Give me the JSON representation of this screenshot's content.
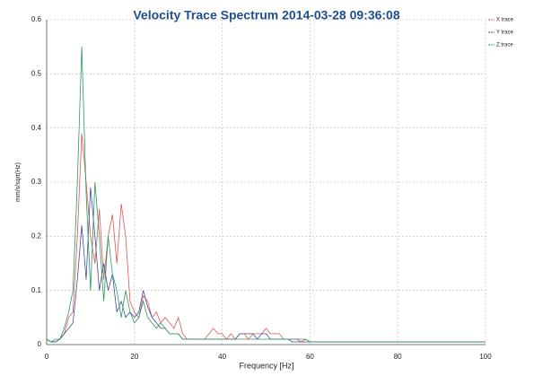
{
  "chart_data": {
    "type": "line",
    "title": "Velocity Trace Spectrum 2014-03-28 09:36:08",
    "x_label": "Frequency [Hz]",
    "y_label": "mm/s/sqrt(Hz)",
    "x": [
      0,
      1,
      2,
      3,
      4,
      5,
      6,
      7,
      8,
      9,
      10,
      11,
      12,
      13,
      14,
      15,
      16,
      17,
      18,
      19,
      20,
      21,
      22,
      23,
      24,
      25,
      26,
      27,
      28,
      29,
      30,
      31,
      32,
      33,
      34,
      35,
      36,
      37,
      38,
      39,
      40,
      41,
      42,
      43,
      44,
      45,
      46,
      47,
      48,
      49,
      50,
      51,
      52,
      53,
      54,
      55,
      56,
      57,
      58,
      59,
      60,
      61,
      62,
      63,
      64,
      65,
      66,
      67,
      68,
      69,
      70,
      71,
      72,
      73,
      74,
      75,
      76,
      77,
      78,
      79,
      80,
      81,
      82,
      83,
      84,
      85,
      86,
      87,
      88,
      89,
      90,
      91,
      92,
      93,
      94,
      95,
      96,
      97,
      98,
      99,
      100
    ],
    "series": [
      {
        "name": "X trace",
        "color": "#e05555",
        "values": [
          0.01,
          0.005,
          0.005,
          0.01,
          0.02,
          0.05,
          0.06,
          0.2,
          0.39,
          0.3,
          0.2,
          0.15,
          0.25,
          0.12,
          0.2,
          0.24,
          0.15,
          0.26,
          0.2,
          0.08,
          0.06,
          0.05,
          0.09,
          0.08,
          0.05,
          0.06,
          0.04,
          0.05,
          0.04,
          0.03,
          0.05,
          0.02,
          0.01,
          0.01,
          0.01,
          0.01,
          0.01,
          0.02,
          0.03,
          0.02,
          0.02,
          0.01,
          0.02,
          0.01,
          0.02,
          0.02,
          0.01,
          0.02,
          0.02,
          0.02,
          0.03,
          0.02,
          0.02,
          0.02,
          0.01,
          0.01,
          0.01,
          0.01,
          0.005,
          0.01,
          0.005,
          0.005,
          0.005,
          0.005,
          0.005,
          0.005,
          0.005,
          0.005,
          0.005,
          0.005,
          0.005,
          0.005,
          0.005,
          0.005,
          0.005,
          0.005,
          0.005,
          0.005,
          0.005,
          0.005,
          0.005,
          0.005,
          0.005,
          0.005,
          0.005,
          0.005,
          0.005,
          0.005,
          0.005,
          0.005,
          0.005,
          0.005,
          0.005,
          0.005,
          0.005,
          0.005,
          0.005,
          0.005,
          0.005,
          0.005,
          0.005
        ]
      },
      {
        "name": "Y trace",
        "color": "#3a4fa0",
        "values": [
          0.01,
          0.005,
          0.005,
          0.01,
          0.02,
          0.03,
          0.04,
          0.12,
          0.22,
          0.12,
          0.29,
          0.2,
          0.1,
          0.15,
          0.1,
          0.13,
          0.06,
          0.08,
          0.05,
          0.06,
          0.05,
          0.06,
          0.1,
          0.07,
          0.05,
          0.04,
          0.03,
          0.03,
          0.02,
          0.02,
          0.02,
          0.01,
          0.01,
          0.01,
          0.01,
          0.01,
          0.01,
          0.01,
          0.01,
          0.01,
          0.01,
          0.01,
          0.01,
          0.01,
          0.02,
          0.02,
          0.02,
          0.02,
          0.01,
          0.02,
          0.02,
          0.01,
          0.01,
          0.01,
          0.01,
          0.01,
          0.005,
          0.005,
          0.005,
          0.005,
          0.005,
          0.005,
          0.005,
          0.005,
          0.005,
          0.005,
          0.005,
          0.005,
          0.005,
          0.005,
          0.005,
          0.005,
          0.005,
          0.005,
          0.005,
          0.005,
          0.005,
          0.005,
          0.005,
          0.005,
          0.005,
          0.005,
          0.005,
          0.005,
          0.005,
          0.005,
          0.005,
          0.005,
          0.005,
          0.005,
          0.005,
          0.005,
          0.005,
          0.005,
          0.005,
          0.005,
          0.005,
          0.005,
          0.005,
          0.005,
          0.005
        ]
      },
      {
        "name": "Z trace",
        "color": "#2a9a5a",
        "values": [
          0.01,
          0.005,
          0.01,
          0.01,
          0.03,
          0.06,
          0.1,
          0.3,
          0.55,
          0.28,
          0.1,
          0.3,
          0.2,
          0.08,
          0.2,
          0.13,
          0.1,
          0.05,
          0.1,
          0.06,
          0.04,
          0.05,
          0.08,
          0.05,
          0.04,
          0.03,
          0.04,
          0.03,
          0.02,
          0.02,
          0.02,
          0.01,
          0.01,
          0.01,
          0.01,
          0.01,
          0.01,
          0.01,
          0.01,
          0.01,
          0.01,
          0.01,
          0.01,
          0.01,
          0.01,
          0.01,
          0.01,
          0.01,
          0.01,
          0.01,
          0.01,
          0.01,
          0.01,
          0.01,
          0.01,
          0.01,
          0.01,
          0.01,
          0.01,
          0.01,
          0.005,
          0.005,
          0.005,
          0.005,
          0.005,
          0.005,
          0.005,
          0.005,
          0.005,
          0.005,
          0.005,
          0.005,
          0.005,
          0.005,
          0.005,
          0.005,
          0.005,
          0.005,
          0.005,
          0.005,
          0.005,
          0.005,
          0.005,
          0.005,
          0.005,
          0.005,
          0.005,
          0.005,
          0.005,
          0.005,
          0.005,
          0.005,
          0.005,
          0.005,
          0.005,
          0.005,
          0.005,
          0.005,
          0.005,
          0.005,
          0.005
        ]
      }
    ],
    "xlim": [
      0,
      100
    ],
    "xticks": [
      0,
      20,
      40,
      60,
      80,
      100
    ],
    "ylim": [
      0,
      0.6
    ],
    "yticks": [
      0,
      0.1,
      0.2,
      0.3,
      0.4,
      0.5,
      0.6
    ],
    "grid": true,
    "legend": "top-right"
  }
}
